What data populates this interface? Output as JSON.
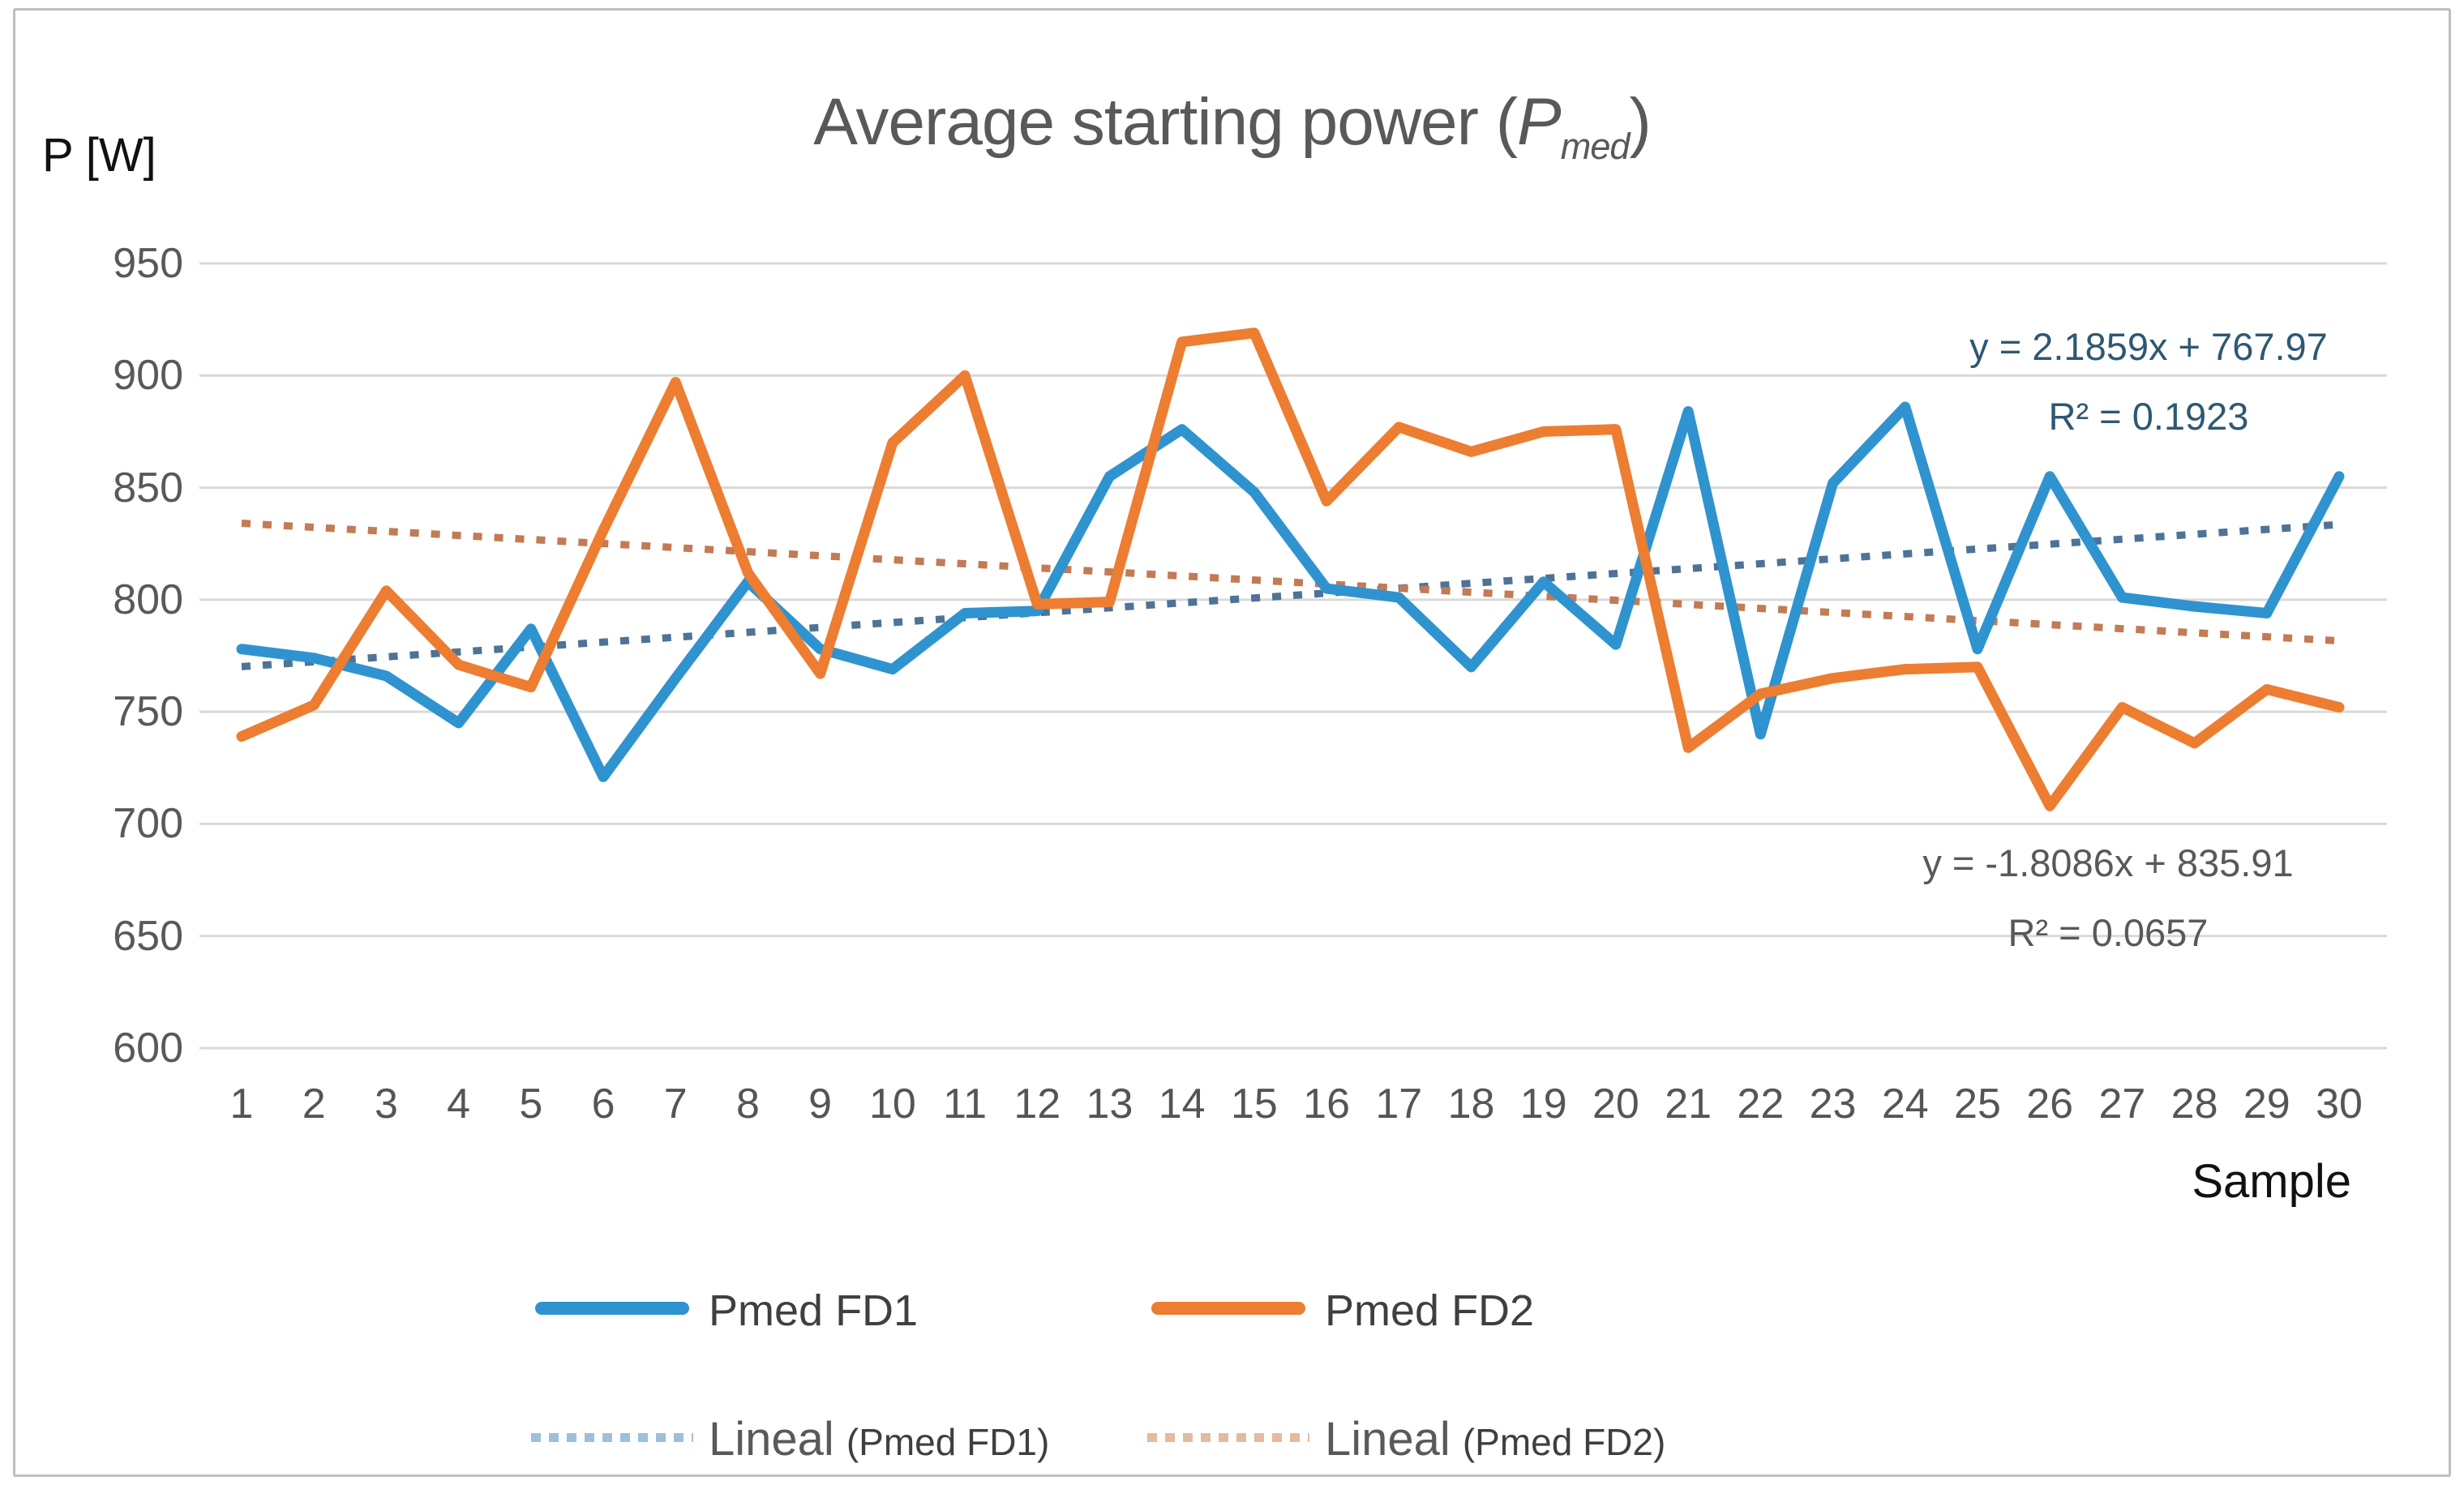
{
  "title": {
    "text_main": "Average starting power (",
    "p": "P",
    "subscript": "med",
    "close_paren": ")"
  },
  "y_axis": {
    "unit_label": "P [W]",
    "ticks": [
      "950",
      "900",
      "850",
      "800",
      "750",
      "700",
      "650",
      "600"
    ]
  },
  "x_axis": {
    "title": "Sample",
    "ticks": [
      "1",
      "2",
      "3",
      "4",
      "5",
      "6",
      "7",
      "8",
      "9",
      "10",
      "11",
      "12",
      "13",
      "14",
      "15",
      "16",
      "17",
      "18",
      "19",
      "20",
      "21",
      "22",
      "23",
      "24",
      "25",
      "26",
      "27",
      "28",
      "29",
      "30"
    ]
  },
  "equations": {
    "fd1_line1": "y = 2.1859x + 767.97",
    "fd1_line2": "R² = 0.1923",
    "fd2_line1": "y = -1.8086x + 835.91",
    "fd2_line2": "R² = 0.0657"
  },
  "legend": {
    "row1": [
      {
        "label": "Pmed FD1",
        "color": "#2F93D0"
      },
      {
        "label": "Pmed FD2",
        "color": "#ED7D31"
      }
    ],
    "row2": [
      {
        "label_big": "Lineal",
        "label_small": "(Pmed FD1)",
        "color": "#9FBFD8"
      },
      {
        "label_big": "Lineal",
        "label_small": "(Pmed FD2)",
        "color": "#E3BBA0"
      }
    ]
  },
  "colors": {
    "fd1": "#2F93D0",
    "fd2": "#ED7D31",
    "trend_fd1": "#4F7396",
    "trend_fd2": "#C27B55",
    "gridline": "#D9D9D9",
    "eq_fd1_text": "#2E5872",
    "eq_fd2_text": "#595959"
  },
  "chart_data": {
    "type": "line",
    "title": "Average starting power (Pmed)",
    "xlabel": "Sample",
    "ylabel": "P [W]",
    "ylim": [
      600,
      950
    ],
    "grid": true,
    "legend_position": "bottom",
    "x": [
      1,
      2,
      3,
      4,
      5,
      6,
      7,
      8,
      9,
      10,
      11,
      12,
      13,
      14,
      15,
      16,
      17,
      18,
      19,
      20,
      21,
      22,
      23,
      24,
      25,
      26,
      27,
      28,
      29,
      30
    ],
    "series": [
      {
        "name": "Pmed FD1",
        "values": [
          778,
          774,
          766,
          745,
          787,
          721,
          765,
          808,
          778,
          769,
          794,
          795,
          855,
          876,
          848,
          805,
          801,
          770,
          808,
          780,
          884,
          740,
          852,
          886,
          778,
          855,
          801,
          797,
          794,
          855
        ]
      },
      {
        "name": "Pmed FD2",
        "values": [
          739,
          753,
          804,
          771,
          761,
          831,
          897,
          812,
          767,
          870,
          900,
          798,
          799,
          915,
          919,
          844,
          877,
          866,
          875,
          876,
          734,
          758,
          765,
          769,
          770,
          708,
          752,
          736,
          760,
          752
        ]
      }
    ],
    "trendlines": [
      {
        "name": "Lineal (Pmed FD1)",
        "slope": 2.1859,
        "intercept": 767.97,
        "r2": 0.1923
      },
      {
        "name": "Lineal (Pmed FD2)",
        "slope": -1.8086,
        "intercept": 835.91,
        "r2": 0.0657
      }
    ]
  }
}
